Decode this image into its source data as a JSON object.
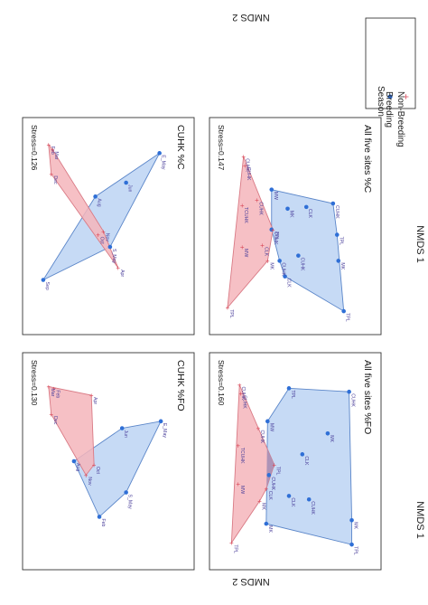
{
  "legend": {
    "title": "Season",
    "items": [
      {
        "label": "Breeding",
        "marker": "dot",
        "color": "#2f6fd6"
      },
      {
        "label": "Non-Breeding",
        "marker": "plus",
        "color": "#d94a5a"
      }
    ]
  },
  "axes": {
    "x_title": "NMDS 1",
    "y_title": "NMDS 2"
  },
  "colors": {
    "breeding_fill": "#bcd3f3",
    "breeding_stroke": "#5b86c9",
    "breeding_point": "#2f6fd6",
    "nonbreeding_fill": "#f4b5bb",
    "nonbreeding_stroke": "#d97a85",
    "nonbreeding_point": "#d94a5a",
    "overlap_fill": "#a58fb6",
    "panel_border": "#333333",
    "label_text": "#4a3f9a"
  },
  "chart_data": [
    {
      "type": "scatter",
      "title": "CUHK %C",
      "stress": "Stress=0.126",
      "xlabel": "NMDS 1",
      "ylabel": "NMDS 2",
      "xlim": [
        0,
        1
      ],
      "ylim": [
        0,
        1
      ],
      "series": [
        {
          "name": "Breeding",
          "points": [
            {
              "label": "Sep",
              "x": 0.06,
              "y": 0.81
            },
            {
              "label": "S_May",
              "x": 0.56,
              "y": 0.62
            },
            {
              "label": "Aug",
              "x": 0.45,
              "y": 0.33
            },
            {
              "label": "Jun",
              "x": 0.68,
              "y": 0.25
            },
            {
              "label": "E_May",
              "x": 0.93,
              "y": 0.08
            }
          ]
        },
        {
          "name": "Non-Breeding",
          "points": [
            {
              "label": "Dec",
              "x": 0.12,
              "y": 0.2
            },
            {
              "label": "Feb",
              "x": 0.1,
              "y": 0.03
            },
            {
              "label": "Mar",
              "x": 0.13,
              "y": 0.06
            },
            {
              "label": "Oct",
              "x": 0.47,
              "y": 0.55
            },
            {
              "label": "Nov",
              "x": 0.51,
              "y": 0.53
            },
            {
              "label": "Apr",
              "x": 0.62,
              "y": 0.74
            }
          ]
        }
      ],
      "overlap": false
    },
    {
      "type": "scatter",
      "title": "CUHK %FO",
      "stress": "Stress=0.130",
      "xlabel": "NMDS 1",
      "ylabel": "NMDS 2",
      "xlim": [
        0,
        1
      ],
      "ylim": [
        0,
        1
      ],
      "series": [
        {
          "name": "Breeding",
          "points": [
            {
              "label": "Feb",
              "x": 0.48,
              "y": 0.82
            },
            {
              "label": "S_May",
              "x": 0.68,
              "y": 0.68
            },
            {
              "label": "Aug",
              "x": 0.29,
              "y": 0.5
            },
            {
              "label": "Jun",
              "x": 0.65,
              "y": 0.31
            },
            {
              "label": "E_May",
              "x": 0.94,
              "y": 0.27
            }
          ]
        },
        {
          "name": "Non-Breeding",
          "points": [
            {
              "label": "Dec",
              "x": 0.12,
              "y": 0.23
            },
            {
              "label": "Feb",
              "x": 0.14,
              "y": 0.08
            },
            {
              "label": "Mar",
              "x": 0.1,
              "y": 0.07
            },
            {
              "label": "Nov",
              "x": 0.38,
              "y": 0.58
            },
            {
              "label": "Oct",
              "x": 0.44,
              "y": 0.52
            },
            {
              "label": "Apr",
              "x": 0.42,
              "y": 0.12
            }
          ]
        }
      ],
      "overlap": false
    },
    {
      "type": "scatter",
      "title": "All five sites %C",
      "stress": "Stress=0.147",
      "xlabel": "NMDS 1",
      "ylabel": "NMDS 2",
      "xlim": [
        0,
        1
      ],
      "ylim": [
        0,
        1
      ],
      "series": [
        {
          "name": "Breeding",
          "points": [
            {
              "label": "TPL",
              "x": 0.91,
              "y": 0.99
            },
            {
              "label": "MK",
              "x": 0.87,
              "y": 0.7
            },
            {
              "label": "CUHK",
              "x": 0.57,
              "y": 0.67
            },
            {
              "label": "CUHK",
              "x": 0.37,
              "y": 0.52
            },
            {
              "label": "CLK",
              "x": 0.47,
              "y": 0.79
            },
            {
              "label": "MW",
              "x": 0.37,
              "y": 0.29
            },
            {
              "label": "CLK",
              "x": 0.63,
              "y": 0.39
            },
            {
              "label": "MK",
              "x": 0.49,
              "y": 0.4
            },
            {
              "label": "CUHK",
              "x": 0.43,
              "y": 0.7
            },
            {
              "label": "CUHK",
              "x": 0.83,
              "y": 0.37
            },
            {
              "label": "TPL",
              "x": 0.86,
              "y": 0.55
            }
          ]
        },
        {
          "name": "Non-Breeding",
          "points": [
            {
              "label": "TPL",
              "x": 0.04,
              "y": 0.97
            },
            {
              "label": "MW",
              "x": 0.15,
              "y": 0.62
            },
            {
              "label": "TCUHK",
              "x": 0.15,
              "y": 0.38
            },
            {
              "label": "CUHK",
              "x": 0.17,
              "y": 0.15
            },
            {
              "label": "CUHK",
              "x": 0.16,
              "y": 0.1
            },
            {
              "label": "CLK",
              "x": 0.3,
              "y": 0.61
            },
            {
              "label": "MK",
              "x": 0.34,
              "y": 0.7
            },
            {
              "label": "TPL",
              "x": 0.38,
              "y": 0.52
            },
            {
              "label": "CUHK",
              "x": 0.26,
              "y": 0.35
            }
          ]
        }
      ],
      "overlap": true
    },
    {
      "type": "scatter",
      "title": "All five sites %FO",
      "stress": "Stress=0.160",
      "xlabel": "NMDS 1",
      "ylabel": "NMDS 2",
      "xlim": [
        0,
        1
      ],
      "ylim": [
        0,
        1
      ],
      "series": [
        {
          "name": "Breeding",
          "points": [
            {
              "label": "TPL",
              "x": 0.97,
              "y": 0.98
            },
            {
              "label": "MK",
              "x": 0.97,
              "y": 0.84
            },
            {
              "label": "CUHK",
              "x": 0.65,
              "y": 0.72
            },
            {
              "label": "CUHK",
              "x": 0.35,
              "y": 0.58
            },
            {
              "label": "CLK",
              "x": 0.5,
              "y": 0.7
            },
            {
              "label": "CLK",
              "x": 0.6,
              "y": 0.46
            },
            {
              "label": "MK",
              "x": 0.79,
              "y": 0.34
            },
            {
              "label": "CUHK",
              "x": 0.95,
              "y": 0.1
            },
            {
              "label": "TPL",
              "x": 0.5,
              "y": 0.08
            },
            {
              "label": "MW",
              "x": 0.34,
              "y": 0.27
            },
            {
              "label": "MK",
              "x": 0.33,
              "y": 0.86
            }
          ]
        },
        {
          "name": "Non-Breeding",
          "points": [
            {
              "label": "TPL",
              "x": 0.07,
              "y": 0.97
            },
            {
              "label": "MW",
              "x": 0.12,
              "y": 0.63
            },
            {
              "label": "TCUHK",
              "x": 0.12,
              "y": 0.41
            },
            {
              "label": "CUHK",
              "x": 0.14,
              "y": 0.11
            },
            {
              "label": "CUHK",
              "x": 0.13,
              "y": 0.06
            },
            {
              "label": "CLK",
              "x": 0.33,
              "y": 0.66
            },
            {
              "label": "MK",
              "x": 0.28,
              "y": 0.73
            },
            {
              "label": "TPL",
              "x": 0.39,
              "y": 0.52
            },
            {
              "label": "CUHK",
              "x": 0.27,
              "y": 0.31
            }
          ]
        }
      ],
      "overlap": true
    }
  ]
}
